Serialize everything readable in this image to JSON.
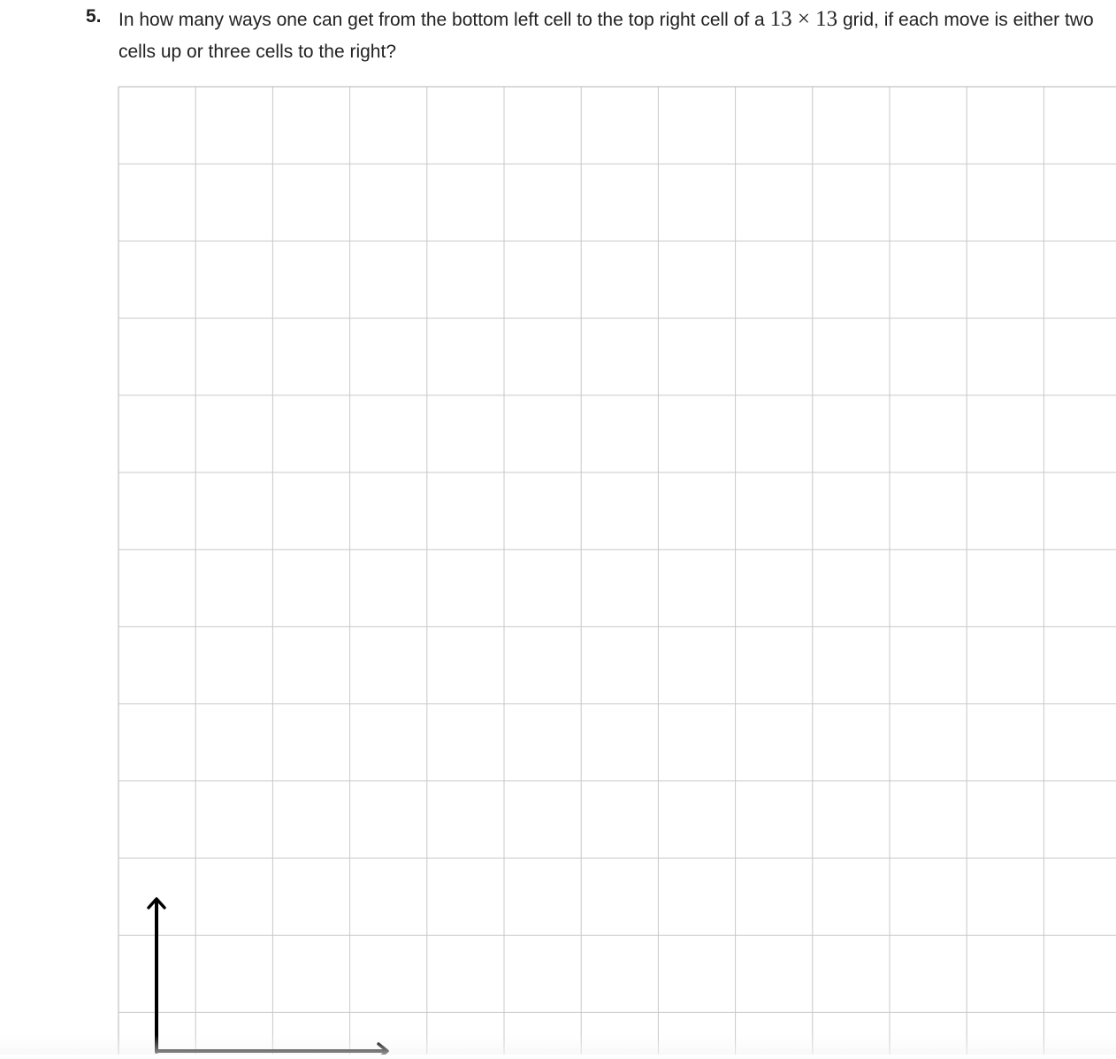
{
  "problem": {
    "number": "5.",
    "text_before": "In how many ways one can get from the bottom left cell to the top right cell of a ",
    "math": "13 × 13",
    "text_after": " grid, if each move is either two cells up or three cells to the right?"
  },
  "grid": {
    "rows": 13,
    "cols": 13,
    "line_color": "#c8c8c8",
    "border_color": "#b4b4b4"
  },
  "arrows": {
    "color": "#000000",
    "up_icon": "arrow-up-icon",
    "right_icon": "arrow-right-icon"
  }
}
